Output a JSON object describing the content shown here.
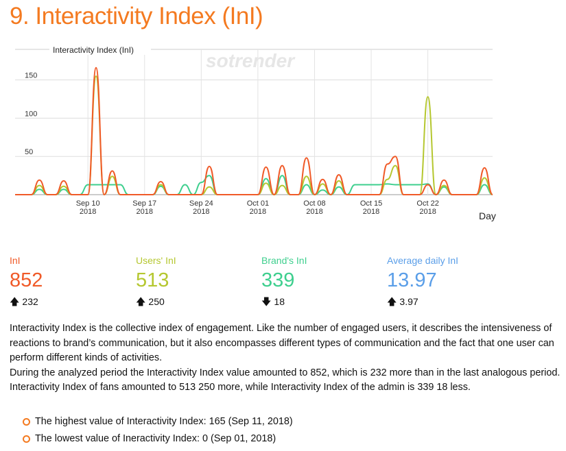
{
  "page": {
    "title": "9. Interactivity Index (InI)"
  },
  "chart_data": {
    "type": "line",
    "title": "Interactivity Index (InI)",
    "watermark": "sotrender",
    "xlabel": "Day",
    "ylabel": "",
    "x_ticks": [
      {
        "day": 9,
        "line1": "Sep 10",
        "line2": "2018"
      },
      {
        "day": 16,
        "line1": "Sep 17",
        "line2": "2018"
      },
      {
        "day": 23,
        "line1": "Sep 24",
        "line2": "2018"
      },
      {
        "day": 30,
        "line1": "Oct 01",
        "line2": "2018"
      },
      {
        "day": 37,
        "line1": "Oct 08",
        "line2": "2018"
      },
      {
        "day": 44,
        "line1": "Oct 15",
        "line2": "2018"
      },
      {
        "day": 51,
        "line1": "Oct 22",
        "line2": "2018"
      }
    ],
    "y_ticks": [
      50,
      100,
      150
    ],
    "xlim": [
      0,
      59
    ],
    "ylim": [
      0,
      190
    ],
    "grid": true,
    "series": [
      {
        "name": "InI",
        "color": "#f05a28",
        "points": [
          [
            3,
            19
          ],
          [
            6,
            18
          ],
          [
            10,
            166
          ],
          [
            12,
            31
          ],
          [
            18,
            17
          ],
          [
            24,
            37
          ],
          [
            31,
            36
          ],
          [
            33,
            38
          ],
          [
            36,
            48
          ],
          [
            38,
            20
          ],
          [
            40,
            26
          ],
          [
            46,
            40
          ],
          [
            47,
            50
          ],
          [
            51,
            13
          ],
          [
            53,
            19
          ],
          [
            58,
            35
          ]
        ]
      },
      {
        "name": "Users' InI",
        "color": "#b5c730",
        "points": [
          [
            3,
            12
          ],
          [
            6,
            11
          ],
          [
            10,
            155
          ],
          [
            12,
            24
          ],
          [
            18,
            13
          ],
          [
            24,
            10
          ],
          [
            31,
            15
          ],
          [
            33,
            12
          ],
          [
            36,
            24
          ],
          [
            38,
            14
          ],
          [
            40,
            18
          ],
          [
            46,
            20
          ],
          [
            47,
            38
          ],
          [
            51,
            128
          ],
          [
            53,
            12
          ],
          [
            58,
            22
          ]
        ]
      },
      {
        "name": "Brand's InI",
        "color": "#3ecf8e",
        "points": [
          [
            3,
            7
          ],
          [
            6,
            7
          ],
          [
            9,
            13
          ],
          [
            10,
            13
          ],
          [
            11,
            13
          ],
          [
            12,
            13
          ],
          [
            13,
            13
          ],
          [
            18,
            11
          ],
          [
            21,
            13
          ],
          [
            23,
            16
          ],
          [
            24,
            25
          ],
          [
            31,
            21
          ],
          [
            33,
            25
          ],
          [
            36,
            13
          ],
          [
            38,
            6
          ],
          [
            40,
            10
          ],
          [
            42,
            13
          ],
          [
            43,
            13
          ],
          [
            44,
            13
          ],
          [
            45,
            13
          ],
          [
            46,
            14
          ],
          [
            47,
            13
          ],
          [
            48,
            13
          ],
          [
            49,
            13
          ],
          [
            50,
            13
          ],
          [
            51,
            14
          ],
          [
            53,
            10
          ],
          [
            58,
            13
          ]
        ]
      }
    ]
  },
  "metrics": [
    {
      "label": "InI",
      "value": "852",
      "change": "232",
      "direction": "up",
      "color": "#f05a28"
    },
    {
      "label": "Users' InI",
      "value": "513",
      "change": "250",
      "direction": "up",
      "color": "#b5c730"
    },
    {
      "label": "Brand's InI",
      "value": "339",
      "change": "18",
      "direction": "down",
      "color": "#3ecf8e"
    },
    {
      "label": "Average daily InI",
      "value": "13.97",
      "change": "3.97",
      "direction": "up",
      "color": "#5a9ee8"
    }
  ],
  "description": {
    "p1": "Interactivity Index is the collective index of engagement. Like the number of engaged users, it describes the intensiveness of reactions to brand’s communication, but it also encompasses different types of communication and the fact that one user can perform different kinds of activities.",
    "p2": "During the analyzed period the Interactivity Index value amounted to 852, which is 232 more than in the last analogous period.",
    "p3": "Interactivity Index of fans amounted to 513 250 more, while Interactivity Index of the admin is 339 18 less."
  },
  "bullets": [
    "The highest value of Interactivity Index: 165 (Sep 11, 2018)",
    "The lowest value of Ineractivity Index: 0 (Sep 01, 2018)"
  ]
}
